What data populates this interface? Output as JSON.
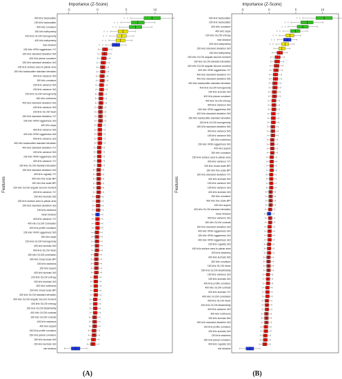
{
  "colors": {
    "confirmed": "#2fbf1f",
    "tentative": "#e8e000",
    "rejected": "#e0150f",
    "shadow": "#1b33d6",
    "frame": "#444444"
  },
  "chart_data": [
    {
      "type": "boxplot",
      "panel_label": "(A)",
      "title": "Importance (Z-Score)",
      "xlabel": "Importance (Z-Score)",
      "ylabel": "Features",
      "xlim": [
        -7,
        13
      ],
      "xticks": [
        -5,
        0,
        5,
        10
      ],
      "features": [
        {
          "name": "400 kHz backscatter",
          "median": 9.5,
          "status": "confirmed"
        },
        {
          "name": "150 kHz backscatter",
          "median": 7.0,
          "status": "confirmed"
        },
        {
          "name": "400 kHz curvature",
          "median": 6.6,
          "status": "confirmed"
        },
        {
          "name": "150 kHz bathymetry",
          "median": 4.4,
          "status": "tentative"
        },
        {
          "name": "400 kHz GLCM homogeneity",
          "median": 4.2,
          "status": "tentative"
        },
        {
          "name": "400 kHz bathymetry",
          "median": 4.0,
          "status": "tentative"
        },
        {
          "name": "max shadow",
          "median": 3.2,
          "status": "shadow"
        },
        {
          "name": "150 kHz VRM ruggedness 7x7",
          "median": 1.3,
          "status": "rejected"
        },
        {
          "name": "150 kHz standard deviation 5x5",
          "median": 1.2,
          "status": "rejected"
        },
        {
          "name": "400 kHz planar curvature",
          "median": 1.1,
          "status": "rejected"
        },
        {
          "name": "150 kHz standard deviation 3x3",
          "median": 1.0,
          "status": "rejected"
        },
        {
          "name": "150 kHz surface area to planar area",
          "median": 0.9,
          "status": "rejected"
        },
        {
          "name": "150 kHz backscatter standard deviation",
          "median": 0.9,
          "status": "rejected"
        },
        {
          "name": "400 kHz variance 9x9",
          "median": 0.8,
          "status": "rejected"
        },
        {
          "name": "150 kHz curvature",
          "median": 0.8,
          "status": "rejected"
        },
        {
          "name": "150 kHz variance 5x5",
          "median": 0.7,
          "status": "rejected"
        },
        {
          "name": "150 kHz variance 3x3",
          "median": 0.7,
          "status": "rejected"
        },
        {
          "name": "150 kHz GLCM homogeneity",
          "median": 0.6,
          "status": "rejected"
        },
        {
          "name": "150 kHz northness",
          "median": 0.6,
          "status": "rejected"
        },
        {
          "name": "400 kHz standard deviation 9x9",
          "median": 0.6,
          "status": "rejected"
        },
        {
          "name": "150 kHz variance 3x3",
          "median": 0.5,
          "status": "rejected"
        },
        {
          "name": "150 kHz GLCM mean",
          "median": 0.5,
          "status": "rejected"
        },
        {
          "name": "150 kHz standard deviation 7x7",
          "median": 0.5,
          "status": "rejected"
        },
        {
          "name": "150 kHz VRM ruggedness 3x3",
          "median": 0.5,
          "status": "rejected"
        },
        {
          "name": "400 kHz slope",
          "median": 0.4,
          "status": "rejected"
        },
        {
          "name": "400 kHz variance 5x5",
          "median": 0.4,
          "status": "rejected"
        },
        {
          "name": "400 kHz VRM ruggedness 5x5",
          "median": 0.4,
          "status": "rejected"
        },
        {
          "name": "400 kHz variance 3x3",
          "median": 0.4,
          "status": "rejected"
        },
        {
          "name": "400 kHz backscatter standard deviation",
          "median": 0.4,
          "status": "rejected"
        },
        {
          "name": "400 kHz standard deviation 7x7",
          "median": 0.3,
          "status": "rejected"
        },
        {
          "name": "150 kHz variance 9x9",
          "median": 0.3,
          "status": "rejected"
        },
        {
          "name": "150 kHz VRM ruggedness 9x9",
          "median": 0.3,
          "status": "rejected"
        },
        {
          "name": "400 kHz variance 7x7",
          "median": 0.3,
          "status": "rejected"
        },
        {
          "name": "150 kHz GLCM standard deviation",
          "median": 0.3,
          "status": "rejected"
        },
        {
          "name": "150 kHz standard deviation 9x9",
          "median": 0.2,
          "status": "rejected"
        },
        {
          "name": "400 kHz rugosity 7x7",
          "median": 0.2,
          "status": "rejected"
        },
        {
          "name": "400 kHz fine scale BPI",
          "median": 0.2,
          "status": "rejected"
        },
        {
          "name": "150 kHz fine scale BPI",
          "median": 0.2,
          "status": "rejected"
        },
        {
          "name": "150 kHz GLCM angular second moment",
          "median": 0.2,
          "status": "rejected"
        },
        {
          "name": "400 kHz variance 7x7",
          "median": 0.2,
          "status": "rejected"
        },
        {
          "name": "150 kHz kurtosis 5x5",
          "median": 0.1,
          "status": "rejected"
        },
        {
          "name": "150 kHz surface area to planar area",
          "median": 0.1,
          "status": "rejected"
        },
        {
          "name": "150 kHz standard deviation 3x3",
          "median": 0.1,
          "status": "rejected"
        },
        {
          "name": "150 kHz eastness",
          "median": 0.1,
          "status": "rejected"
        },
        {
          "name": "mean shadow",
          "median": 0.0,
          "status": "shadow"
        },
        {
          "name": "400 kHz variance 7x7",
          "median": 0.0,
          "status": "rejected"
        },
        {
          "name": "400 kHz GLCM correlation",
          "median": 0.0,
          "status": "rejected"
        },
        {
          "name": "400 kHz profile curvature",
          "median": 0.0,
          "status": "rejected"
        },
        {
          "name": "150 kHz VRM ruggedness 5x5",
          "median": -0.1,
          "status": "rejected"
        },
        {
          "name": "150 kHz slope",
          "median": -0.1,
          "status": "rejected"
        },
        {
          "name": "150 kHz GLCM homogeneity",
          "median": -0.1,
          "status": "rejected"
        },
        {
          "name": "400 kHz kurtosis 9x9",
          "median": -0.1,
          "status": "rejected"
        },
        {
          "name": "400 kHz GLCM mean",
          "median": -0.1,
          "status": "rejected"
        },
        {
          "name": "150 kHz GLCM correlation",
          "median": -0.2,
          "status": "rejected"
        },
        {
          "name": "400 kHz broad scale BPI",
          "median": -0.2,
          "status": "rejected"
        },
        {
          "name": "150 kHz eastness",
          "median": -0.2,
          "status": "rejected"
        },
        {
          "name": "150 kHz aspect",
          "median": -0.2,
          "status": "rejected"
        },
        {
          "name": "400 kHz kurtosis 3x3",
          "median": -0.2,
          "status": "rejected"
        },
        {
          "name": "150 kHz GLCM entropy",
          "median": -0.3,
          "status": "rejected"
        },
        {
          "name": "150 kHz kurtosis 3x3",
          "median": -0.3,
          "status": "rejected"
        },
        {
          "name": "400 kHz northness",
          "median": -0.3,
          "status": "rejected"
        },
        {
          "name": "150 kHz broad scale BPI",
          "median": -0.3,
          "status": "rejected"
        },
        {
          "name": "400 kHz GLCM standard deviation",
          "median": -0.3,
          "status": "rejected"
        },
        {
          "name": "400 kHz GLCM angular second moment",
          "median": -0.4,
          "status": "rejected"
        },
        {
          "name": "400 kHz GLCM entropy",
          "median": -0.4,
          "status": "rejected"
        },
        {
          "name": "150 kHz GLCM dissimilarity",
          "median": -0.4,
          "status": "rejected"
        },
        {
          "name": "400 kHz GLCM contrast",
          "median": -0.4,
          "status": "rejected"
        },
        {
          "name": "150 kHz GLCM contrast",
          "median": -0.5,
          "status": "rejected"
        },
        {
          "name": "400 kHz eastness",
          "median": -0.5,
          "status": "rejected"
        },
        {
          "name": "400 kHz aspect",
          "median": -0.5,
          "status": "rejected"
        },
        {
          "name": "150 kHz profile curvature",
          "median": -0.6,
          "status": "rejected"
        },
        {
          "name": "150 kHz planar curvature",
          "median": -0.6,
          "status": "rejected"
        },
        {
          "name": "150 kHz kurtosis 9x9",
          "median": -0.7,
          "status": "rejected"
        },
        {
          "name": "150 kHz kurtosis 3x3",
          "median": -0.8,
          "status": "rejected"
        },
        {
          "name": "min shadow",
          "median": -3.8,
          "status": "shadow"
        }
      ]
    },
    {
      "type": "boxplot",
      "panel_label": "(B)",
      "title": "Importance (Z-Score)",
      "xlabel": "Importance (Z-Score)",
      "ylabel": "Features",
      "xlim": [
        -7,
        13
      ],
      "xticks": [
        -5,
        0,
        5,
        10
      ],
      "features": [
        {
          "name": "400 kHz backscatter",
          "median": 10.3,
          "status": "confirmed"
        },
        {
          "name": "150 kHz backscatter",
          "median": 7.1,
          "status": "confirmed"
        },
        {
          "name": "400 kHz curvature",
          "median": 6.3,
          "status": "confirmed"
        },
        {
          "name": "400 kHz slope",
          "median": 4.9,
          "status": "confirmed"
        },
        {
          "name": "150 kHz GLCM entropy",
          "median": 3.9,
          "status": "tentative"
        },
        {
          "name": "max shadow",
          "median": 3.4,
          "status": "shadow"
        },
        {
          "name": "400 kHz bathymetry",
          "median": 3.0,
          "status": "tentative"
        },
        {
          "name": "150 kHz standard deviation 9x9",
          "median": 2.4,
          "status": "tentative"
        },
        {
          "name": "150 kHz bathymetry",
          "median": 2.0,
          "status": "rejected"
        },
        {
          "name": "150 kHz GLCM angular second moment",
          "median": 1.6,
          "status": "rejected"
        },
        {
          "name": "150 kHz GLCM standard deviation",
          "median": 1.5,
          "status": "rejected"
        },
        {
          "name": "400 kHz GLCM angular second moment",
          "median": 1.4,
          "status": "rejected"
        },
        {
          "name": "400 kHz VRM ruggedness 7x7",
          "median": 1.3,
          "status": "rejected"
        },
        {
          "name": "400 kHz standard deviation 7x7",
          "median": 1.2,
          "status": "rejected"
        },
        {
          "name": "400 kHz standard deviation 5x5",
          "median": 1.2,
          "status": "rejected"
        },
        {
          "name": "400 kHz backscatter standard deviation",
          "median": 1.1,
          "status": "rejected"
        },
        {
          "name": "400 kHz GLCM homogeneity",
          "median": 1.1,
          "status": "rejected"
        },
        {
          "name": "150 kHz kurtosis 9x9",
          "median": 1.0,
          "status": "rejected"
        },
        {
          "name": "400 kHz planar curvature",
          "median": 1.0,
          "status": "rejected"
        },
        {
          "name": "400 kHz GLCM entropy",
          "median": 0.9,
          "status": "rejected"
        },
        {
          "name": "400 kHz variance 9x9",
          "median": 0.9,
          "status": "rejected"
        },
        {
          "name": "400 kHz VRM ruggedness 5x5",
          "median": 0.9,
          "status": "rejected"
        },
        {
          "name": "400 kHz standard deviation 3x3",
          "median": 0.8,
          "status": "rejected"
        },
        {
          "name": "150 kHz backscatter standard deviation",
          "median": 0.8,
          "status": "rejected"
        },
        {
          "name": "150 kHz GLCM homogeneity",
          "median": 0.8,
          "status": "rejected"
        },
        {
          "name": "150 kHz standard deviation 5x5",
          "median": 0.7,
          "status": "rejected"
        },
        {
          "name": "400 kHz variance 5x5",
          "median": 0.7,
          "status": "rejected"
        },
        {
          "name": "150 kHz variance 5x5",
          "median": 0.7,
          "status": "rejected"
        },
        {
          "name": "150 kHz northness",
          "median": 0.6,
          "status": "rejected"
        },
        {
          "name": "150 kHz VRM ruggedness 9x9",
          "median": 0.6,
          "status": "rejected"
        },
        {
          "name": "400 kHz aspect",
          "median": 0.6,
          "status": "rejected"
        },
        {
          "name": "150 kHz curvature",
          "median": 0.6,
          "status": "rejected"
        },
        {
          "name": "150 kHz surface area to planar area",
          "median": 0.5,
          "status": "rejected"
        },
        {
          "name": "400 kHz variance 7x7",
          "median": 0.5,
          "status": "rejected"
        },
        {
          "name": "150 kHz broad scale BPI",
          "median": 0.5,
          "status": "rejected"
        },
        {
          "name": "150 kHz fine scale BPI",
          "median": 0.5,
          "status": "rejected"
        },
        {
          "name": "150 kHz standard deviation 7x7",
          "median": 0.4,
          "status": "rejected"
        },
        {
          "name": "400 kHz kurtosis 9x9",
          "median": 0.4,
          "status": "rejected"
        },
        {
          "name": "150 kHz variance 9x9",
          "median": 0.4,
          "status": "rejected"
        },
        {
          "name": "150 kHz variance 3x3",
          "median": 0.4,
          "status": "rejected"
        },
        {
          "name": "400 kHz kurtosis 3x3",
          "median": 0.3,
          "status": "rejected"
        },
        {
          "name": "150 kHz curvature",
          "median": 0.3,
          "status": "rejected"
        },
        {
          "name": "400 kHz fine scale BPI",
          "median": 0.3,
          "status": "rejected"
        },
        {
          "name": "150 kHz aspect",
          "median": 0.3,
          "status": "rejected"
        },
        {
          "name": "400 kHz GLCM standard deviation",
          "median": 0.2,
          "status": "rejected"
        },
        {
          "name": "mean shadow",
          "median": 0.0,
          "status": "shadow"
        },
        {
          "name": "400 kHz variance 3x3",
          "median": 0.2,
          "status": "rejected"
        },
        {
          "name": "150 kHz GLCM contrast",
          "median": 0.2,
          "status": "rejected"
        },
        {
          "name": "150 kHz standard deviation 3x3",
          "median": 0.1,
          "status": "rejected"
        },
        {
          "name": "400 kHz VRM ruggedness 9x9",
          "median": 0.1,
          "status": "rejected"
        },
        {
          "name": "150 kHz VRM ruggedness 3x3",
          "median": 0.1,
          "status": "rejected"
        },
        {
          "name": "400 kHz VRM ruggedness 3x3",
          "median": 0.1,
          "status": "rejected"
        },
        {
          "name": "150 kHz rugosity 3x3",
          "median": 0.0,
          "status": "rejected"
        },
        {
          "name": "400 kHz surface area to planar area",
          "median": 0.0,
          "status": "rejected"
        },
        {
          "name": "400 kHz eastness",
          "median": 0.0,
          "status": "rejected"
        },
        {
          "name": "400 kHz kurtosis 5x5",
          "median": -0.1,
          "status": "rejected"
        },
        {
          "name": "400 kHz curvature",
          "median": -0.1,
          "status": "rejected"
        },
        {
          "name": "150 kHz GLCM mean",
          "median": -0.1,
          "status": "rejected"
        },
        {
          "name": "150 kHz GLCM dissimilarity",
          "median": -0.1,
          "status": "rejected"
        },
        {
          "name": "150 kHz variance 3x3",
          "median": -0.2,
          "status": "rejected"
        },
        {
          "name": "150 kHz kurtosis 3x3",
          "median": -0.2,
          "status": "rejected"
        },
        {
          "name": "400 kHz profile curvature",
          "median": -0.2,
          "status": "rejected"
        },
        {
          "name": "400 kHz GLCM contrast",
          "median": -0.3,
          "status": "rejected"
        },
        {
          "name": "400 kHz kurtosis 7x7",
          "median": -0.3,
          "status": "rejected"
        },
        {
          "name": "400 kHz GLCM correlation",
          "median": -0.3,
          "status": "rejected"
        },
        {
          "name": "400 kHz GLCM mean",
          "median": -0.4,
          "status": "rejected"
        },
        {
          "name": "400 kHz GLCM dissimilarity",
          "median": -0.4,
          "status": "rejected"
        },
        {
          "name": "400 kHz variance 3x3",
          "median": -0.4,
          "status": "rejected"
        },
        {
          "name": "400 kHz northness",
          "median": -0.5,
          "status": "rejected"
        },
        {
          "name": "150 kHz kurtosis 5x5",
          "median": -0.5,
          "status": "rejected"
        },
        {
          "name": "150 kHz standard deviation 3x3",
          "median": -0.5,
          "status": "rejected"
        },
        {
          "name": "150 kHz profile curvature",
          "median": -0.6,
          "status": "rejected"
        },
        {
          "name": "150 kHz kurtosis 9x9",
          "median": -0.6,
          "status": "rejected"
        },
        {
          "name": "150 kHz eastness",
          "median": -0.7,
          "status": "rejected"
        },
        {
          "name": "150 kHz planar curvature",
          "median": -0.7,
          "status": "rejected"
        },
        {
          "name": "400 kHz rugosity 3x3",
          "median": -0.8,
          "status": "rejected"
        },
        {
          "name": "min shadow",
          "median": -3.6,
          "status": "shadow"
        }
      ]
    }
  ]
}
